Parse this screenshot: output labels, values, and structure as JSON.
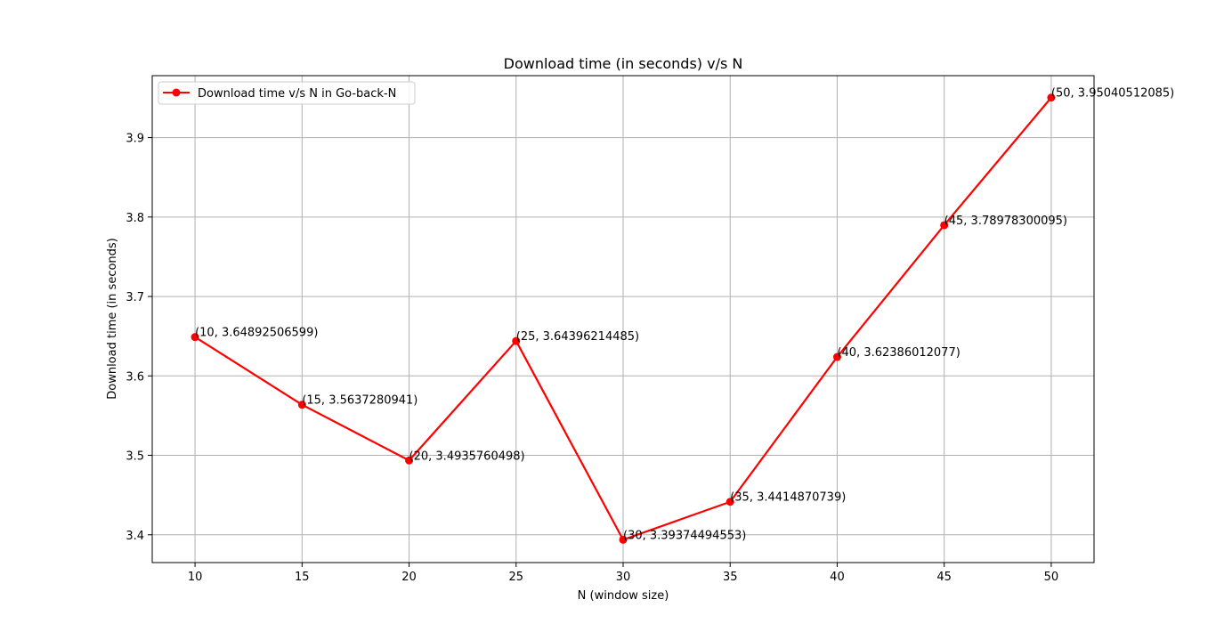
{
  "chart_data": {
    "type": "line",
    "title": "Download time (in seconds) v/s N",
    "xlabel": "N (window size)",
    "ylabel": "Download time (in seconds)",
    "xlim": [
      8,
      52
    ],
    "ylim": [
      3.365,
      3.978
    ],
    "xticks": [
      "10",
      "15",
      "20",
      "25",
      "30",
      "35",
      "40",
      "45",
      "50"
    ],
    "yticks": [
      "3.4",
      "3.5",
      "3.6",
      "3.7",
      "3.8",
      "3.9"
    ],
    "grid": true,
    "legend": "upper left",
    "series": [
      {
        "name": "Download time v/s N in Go-back-N",
        "color": "#ff0000",
        "marker": "circle",
        "x": [
          10,
          15,
          20,
          25,
          30,
          35,
          40,
          45,
          50
        ],
        "y": [
          3.64892506599,
          3.5637280941,
          3.4935760498,
          3.64396214485,
          3.39374494553,
          3.4414870739,
          3.62386012077,
          3.78978300095,
          3.95040512085
        ],
        "labels": [
          "(10, 3.64892506599)",
          "(15, 3.5637280941)",
          "(20, 3.4935760498)",
          "(25, 3.64396214485)",
          "(30, 3.39374494553)",
          "(35, 3.4414870739)",
          "(40, 3.62386012077)",
          "(45, 3.78978300095)",
          "(50, 3.95040512085)"
        ]
      }
    ]
  }
}
